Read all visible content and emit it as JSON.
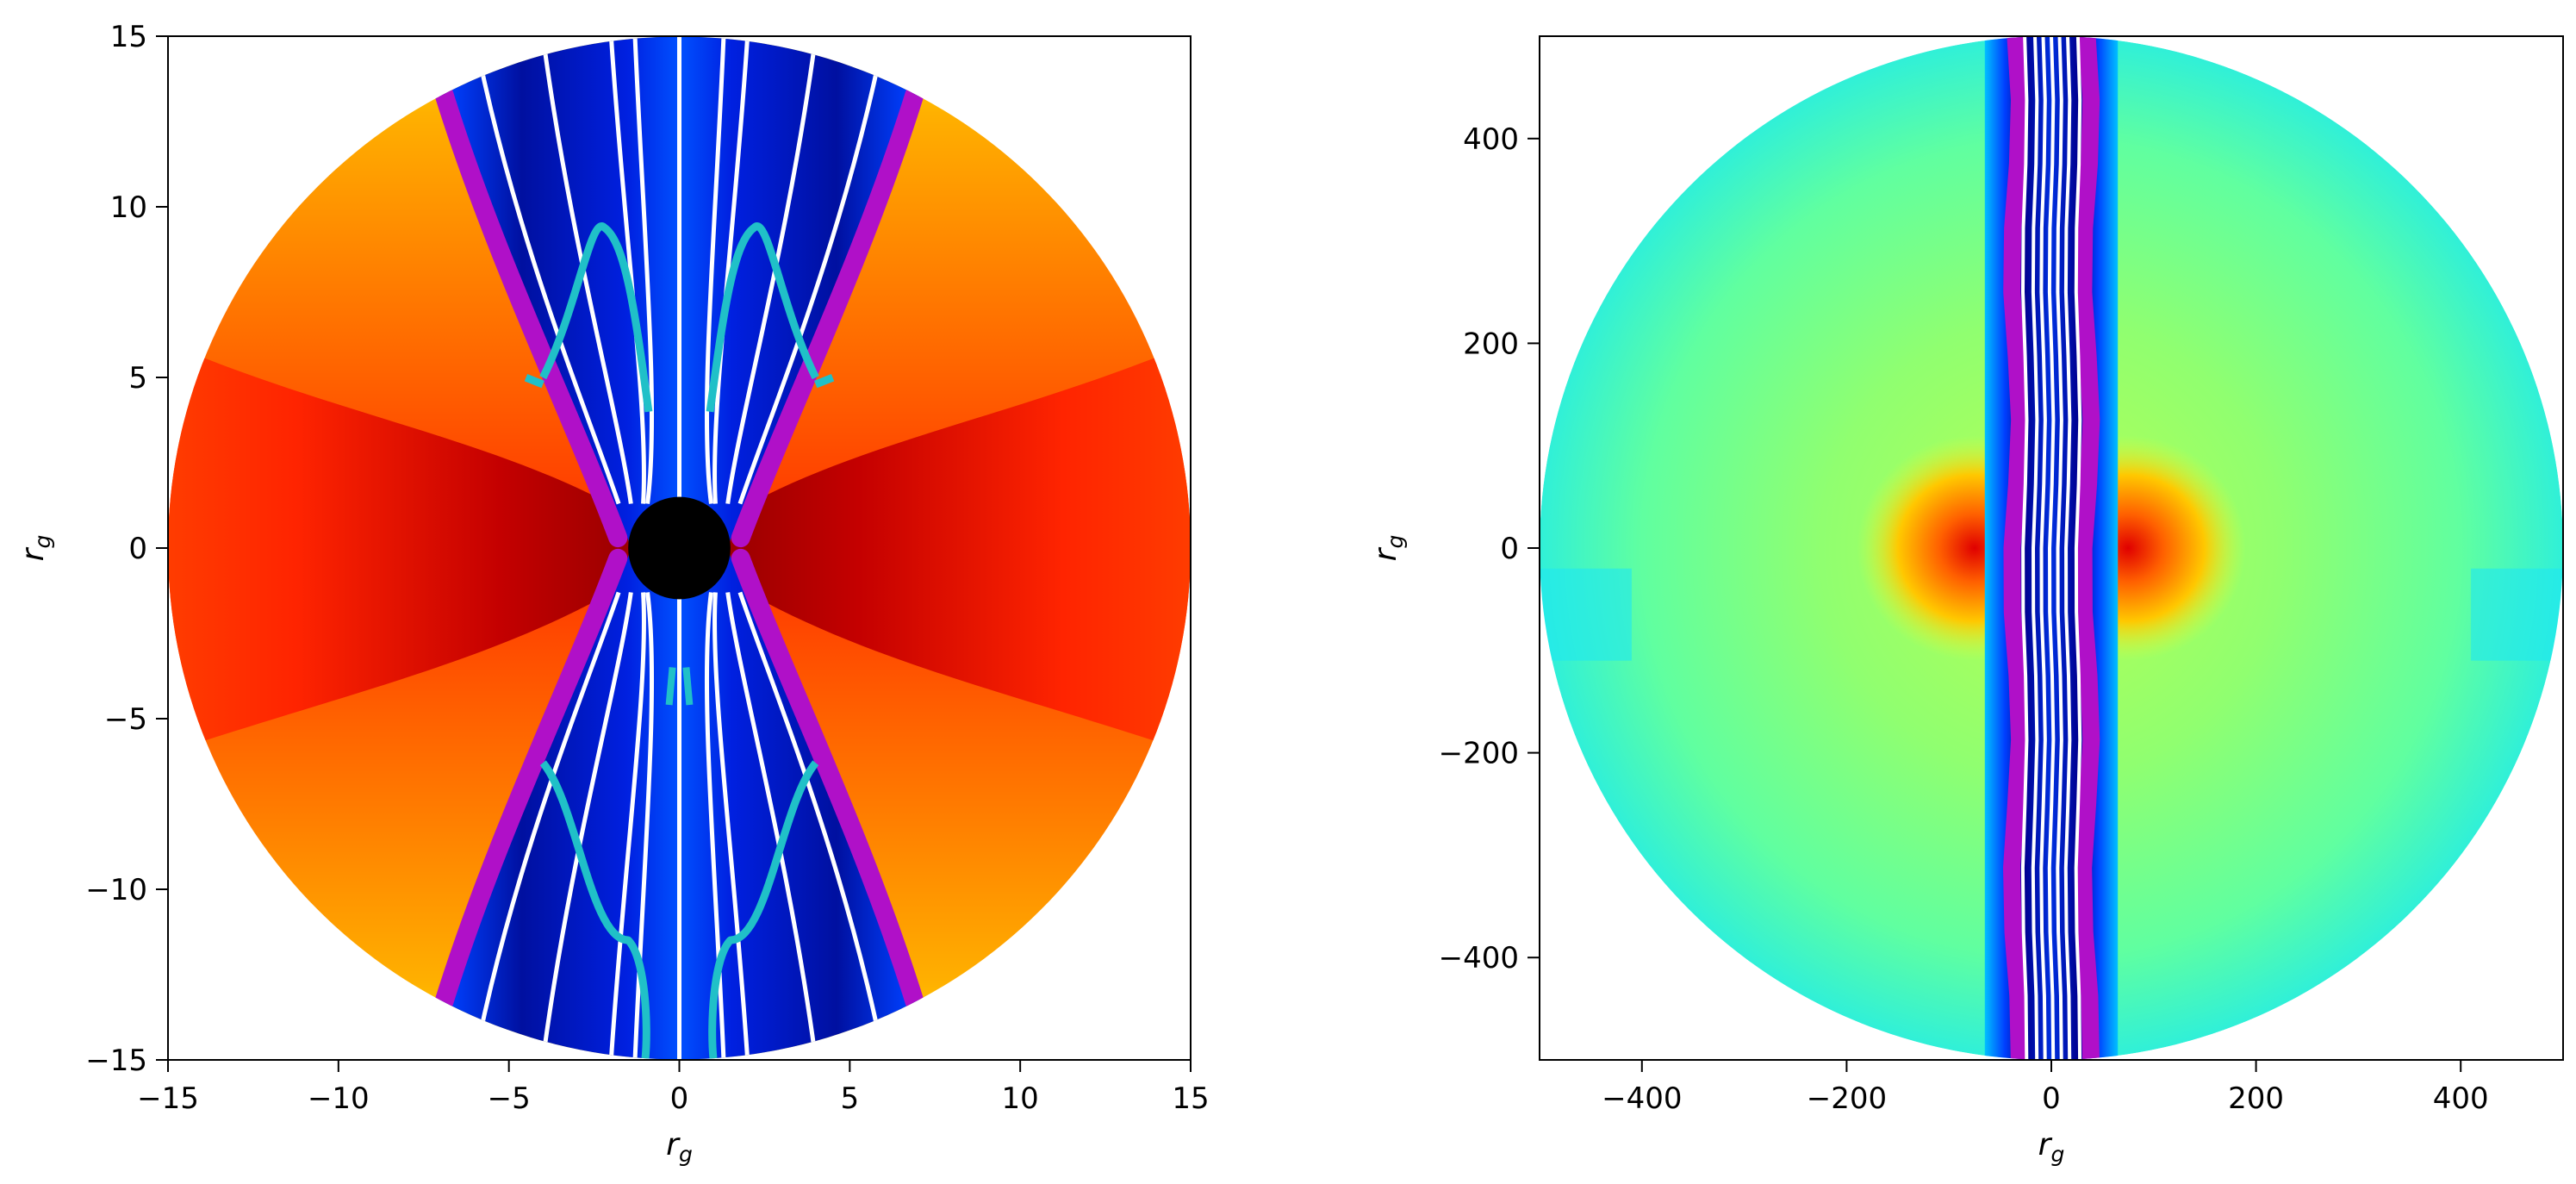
{
  "chart_data": [
    {
      "type": "heatmap",
      "title": "",
      "xlabel": "r",
      "xlabel_sub": "g",
      "ylabel": "r",
      "ylabel_sub": "g",
      "xlim": [
        -15,
        15
      ],
      "ylim": [
        -15,
        15
      ],
      "xticks": [
        -15,
        -10,
        -5,
        0,
        5,
        10,
        15
      ],
      "yticks": [
        -15,
        -10,
        -5,
        0,
        5,
        10,
        15
      ],
      "xtick_labels": [
        "−15",
        "−10",
        "−5",
        "0",
        "5",
        "10",
        "15"
      ],
      "ytick_labels": [
        "−15",
        "−10",
        "−5",
        "0",
        "5",
        "10",
        "15"
      ],
      "domain_radius": 15,
      "horizon_radius": 1.5,
      "colormap": "jet",
      "grid": false,
      "field_line_color": "#ffffff",
      "jet_boundary_color": "#b010c8",
      "contour_color": "#20c0c8",
      "field_line_x_at_top": [
        -6,
        -4,
        -2,
        -1.3,
        0,
        1.3,
        2,
        4,
        6
      ],
      "jet_boundary_x_at_edge": 6.9
    },
    {
      "type": "heatmap",
      "title": "",
      "xlabel": "r",
      "xlabel_sub": "g",
      "ylabel": "r",
      "ylabel_sub": "g",
      "xlim": [
        -500,
        500
      ],
      "ylim": [
        -500,
        500
      ],
      "xticks": [
        -400,
        -200,
        0,
        200,
        400
      ],
      "yticks": [
        -400,
        -200,
        0,
        200,
        400
      ],
      "xtick_labels": [
        "−400",
        "−200",
        "0",
        "200",
        "400"
      ],
      "ytick_labels": [
        "−400",
        "−200",
        "0",
        "200",
        "400"
      ],
      "domain_radius": 500,
      "colormap": "jet",
      "grid": false,
      "field_line_color": "#ffffff",
      "jet_boundary_color": "#b010c8",
      "jet_half_width": 45
    }
  ]
}
